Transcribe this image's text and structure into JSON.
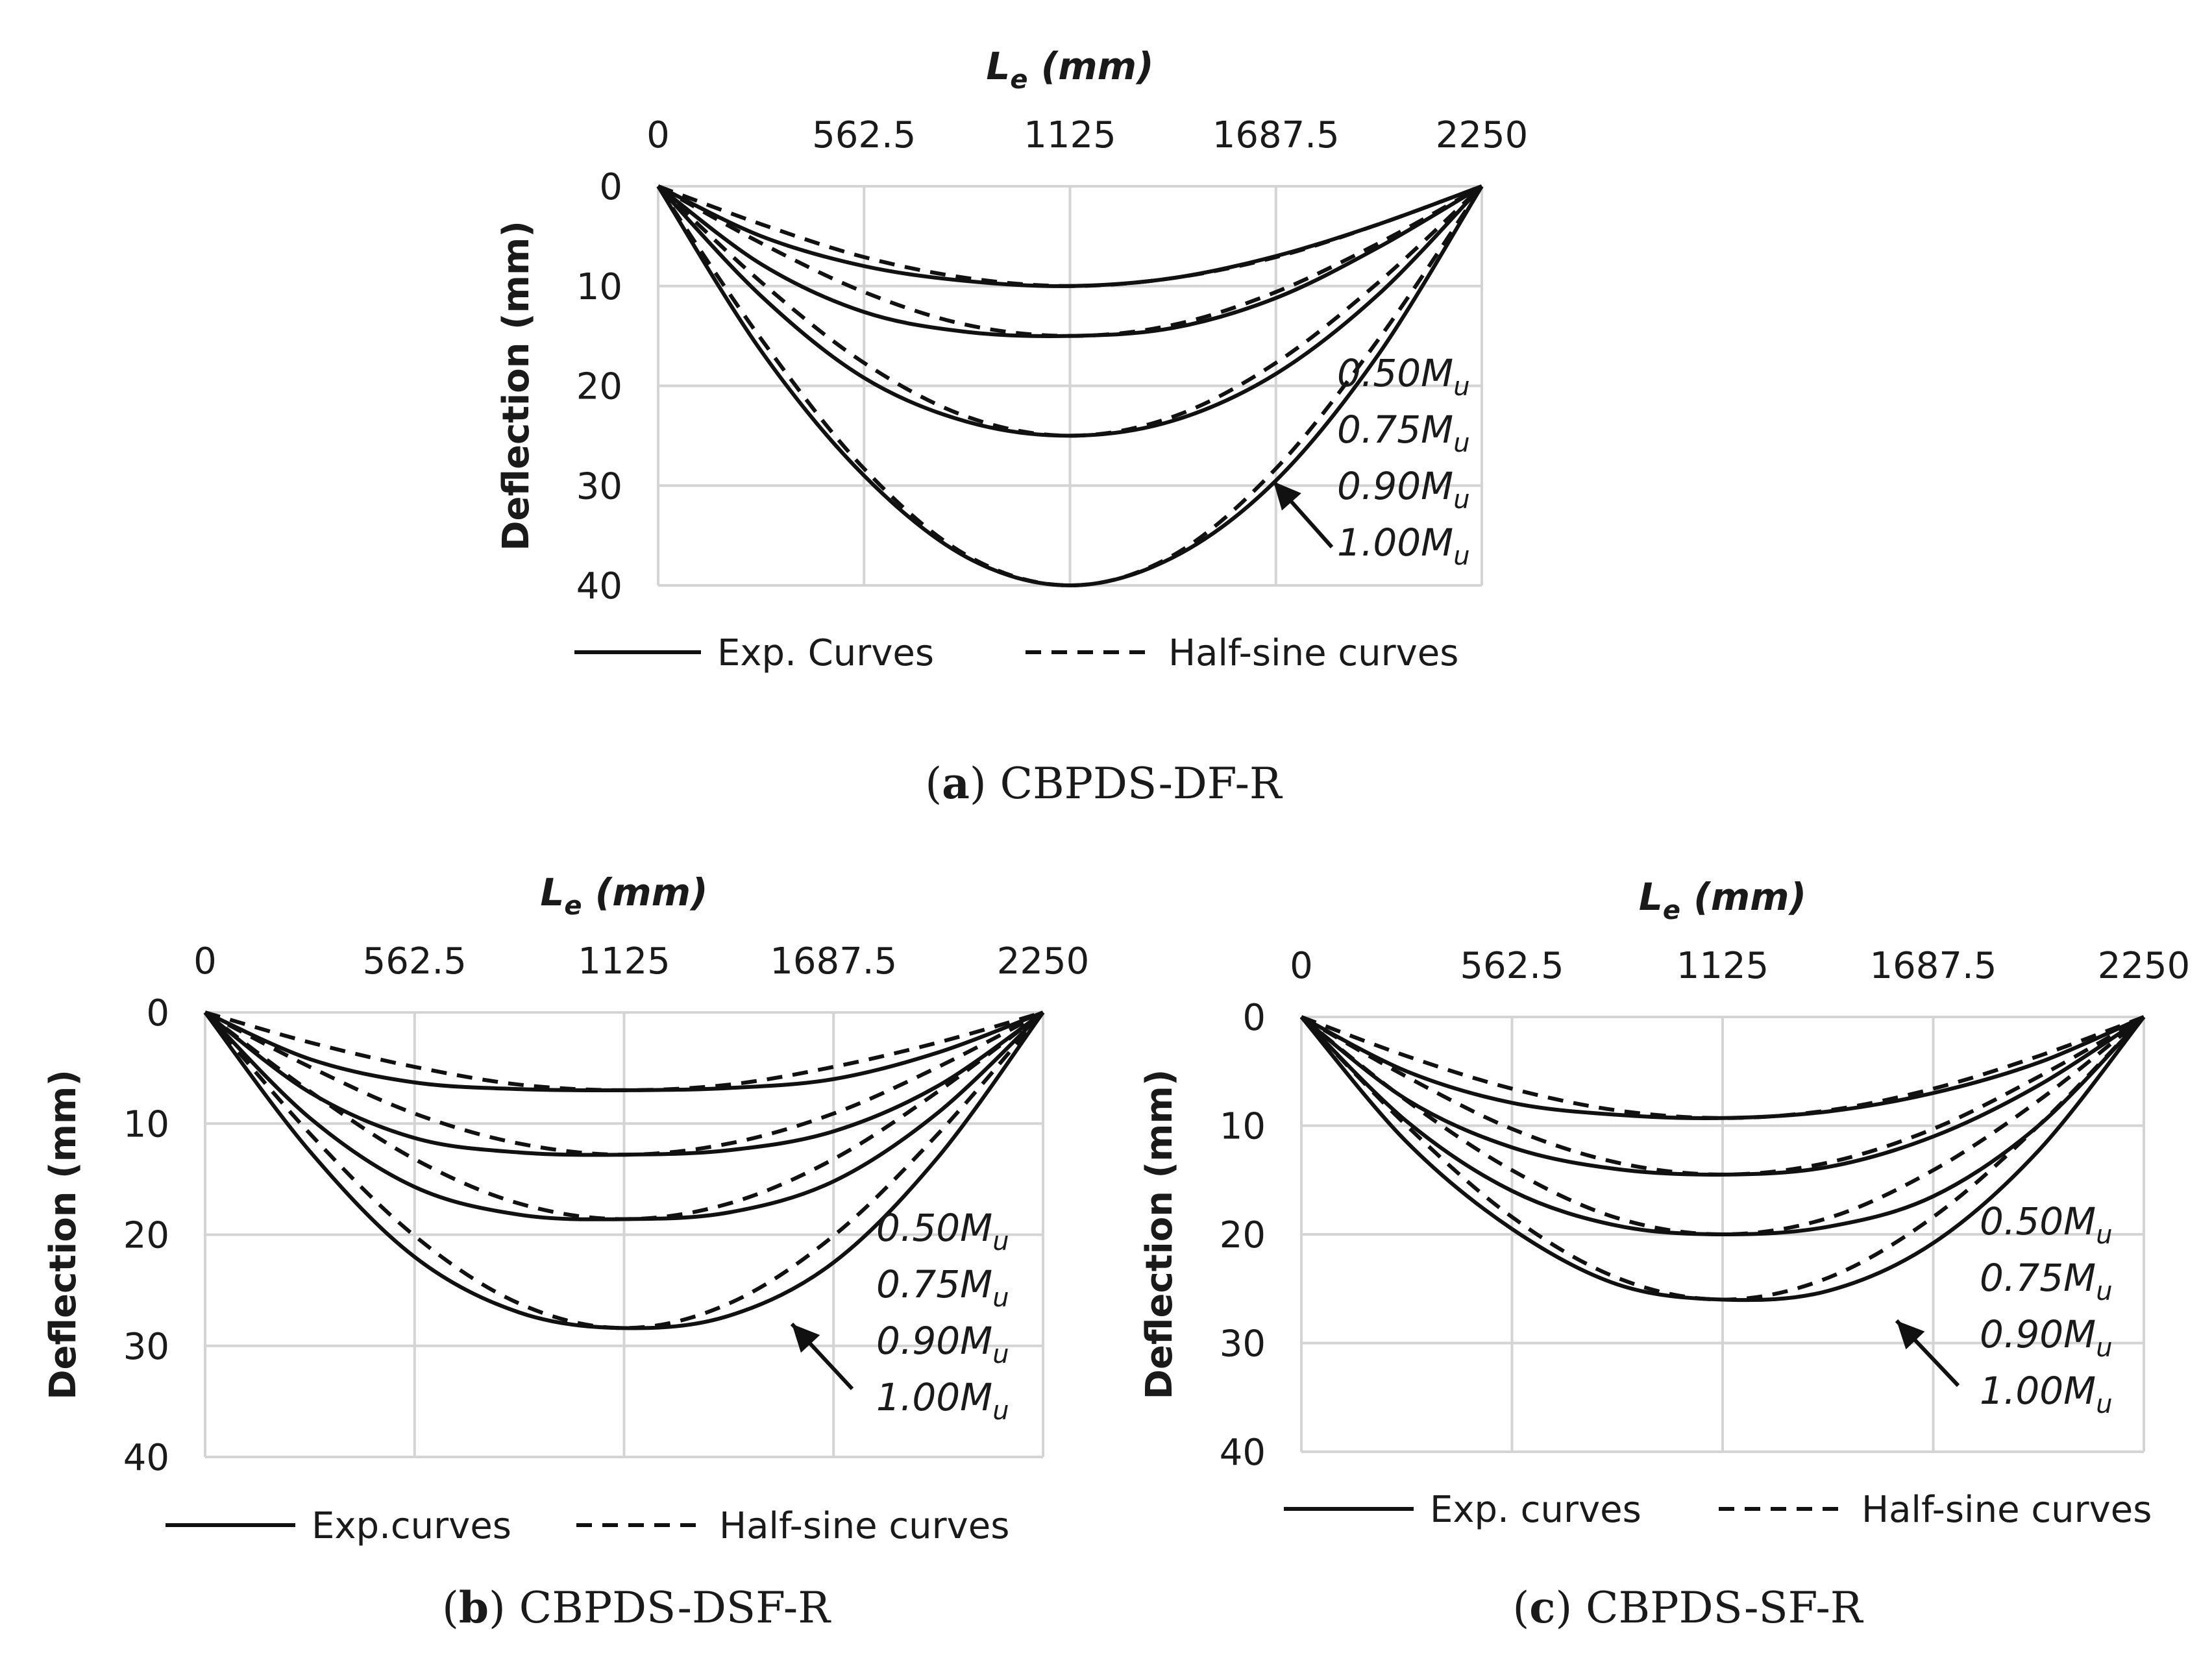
{
  "chart_data": [
    {
      "id": "a",
      "type": "line",
      "x_axis_title_main": "L",
      "x_axis_title_sub": "e",
      "x_axis_title_unit": " (mm)",
      "y_axis_title": "Deflection (mm)",
      "x_ticks": [
        "0",
        "562.5",
        "1125",
        "1687.5",
        "2250"
      ],
      "x_tick_values": [
        0,
        562.5,
        1125,
        1687.5,
        2250
      ],
      "y_ticks": [
        "0",
        "10",
        "20",
        "30",
        "40"
      ],
      "y_tick_values": [
        0,
        10,
        20,
        30,
        40
      ],
      "xlim": [
        0,
        2250
      ],
      "ylim": [
        0,
        40
      ],
      "y_inverted": true,
      "x_axis_position": "top",
      "grid": true,
      "load_levels": [
        "0.50M",
        "0.75M",
        "0.90M",
        "1.00M"
      ],
      "load_level_sub": "u",
      "legend": {
        "solid": "Exp. Curves",
        "dashed": "Half-sine curves",
        "position": "bottom"
      },
      "caption": {
        "label": "a",
        "name": "CBPDS-DF-R"
      },
      "series": [
        {
          "name": "0.50Mu Exp. Curves",
          "style": "solid",
          "x": [
            0,
            281.25,
            562.5,
            843.75,
            1125,
            1406.25,
            1687.5,
            1968.75,
            2250
          ],
          "y": [
            0,
            5.0,
            8.0,
            9.5,
            10.0,
            9.2,
            7.0,
            3.8,
            0
          ]
        },
        {
          "name": "0.50Mu Half-sine curves",
          "style": "dashed",
          "x": [
            0,
            281.25,
            562.5,
            843.75,
            1125,
            1406.25,
            1687.5,
            1968.75,
            2250
          ],
          "y": [
            0,
            3.8,
            7.1,
            9.2,
            10.0,
            9.2,
            7.1,
            3.8,
            0
          ]
        },
        {
          "name": "0.75Mu Exp. Curves",
          "style": "solid",
          "x": [
            0,
            281.25,
            562.5,
            843.75,
            1125,
            1406.25,
            1687.5,
            1968.75,
            2250
          ],
          "y": [
            0,
            7.8,
            12.6,
            14.6,
            15.0,
            14.2,
            11.2,
            6.1,
            0
          ]
        },
        {
          "name": "0.75Mu Half-sine curves",
          "style": "dashed",
          "x": [
            0,
            281.25,
            562.5,
            843.75,
            1125,
            1406.25,
            1687.5,
            1968.75,
            2250
          ],
          "y": [
            0,
            5.7,
            10.6,
            13.9,
            15.0,
            13.9,
            10.6,
            5.7,
            0
          ]
        },
        {
          "name": "0.90Mu Exp. Curves",
          "style": "solid",
          "x": [
            0,
            281.25,
            562.5,
            843.75,
            1125,
            1406.25,
            1687.5,
            1968.75,
            2250
          ],
          "y": [
            0,
            11.0,
            19.2,
            23.6,
            25.0,
            23.5,
            18.8,
            10.8,
            0
          ]
        },
        {
          "name": "0.90Mu Half-sine curves",
          "style": "dashed",
          "x": [
            0,
            281.25,
            562.5,
            843.75,
            1125,
            1406.25,
            1687.5,
            1968.75,
            2250
          ],
          "y": [
            0,
            9.6,
            17.7,
            23.1,
            25.0,
            23.1,
            17.7,
            9.6,
            0
          ]
        },
        {
          "name": "1.00Mu Exp. Curves",
          "style": "solid",
          "x": [
            0,
            281.25,
            562.5,
            843.75,
            1125,
            1406.25,
            1687.5,
            1968.75,
            2250
          ],
          "y": [
            0,
            16.5,
            29.0,
            37.2,
            40.0,
            37.2,
            29.5,
            16.8,
            0
          ]
        },
        {
          "name": "1.00Mu Half-sine curves",
          "style": "dashed",
          "x": [
            0,
            281.25,
            562.5,
            843.75,
            1125,
            1406.25,
            1687.5,
            1968.75,
            2250
          ],
          "y": [
            0,
            15.3,
            28.3,
            37.0,
            40.0,
            37.0,
            28.3,
            15.3,
            0
          ]
        }
      ]
    },
    {
      "id": "b",
      "type": "line",
      "x_axis_title_main": "L",
      "x_axis_title_sub": "e",
      "x_axis_title_unit": " (mm)",
      "y_axis_title": "Deflection (mm)",
      "x_ticks": [
        "0",
        "562.5",
        "1125",
        "1687.5",
        "2250"
      ],
      "x_tick_values": [
        0,
        562.5,
        1125,
        1687.5,
        2250
      ],
      "y_ticks": [
        "0",
        "10",
        "20",
        "30",
        "40"
      ],
      "y_tick_values": [
        0,
        10,
        20,
        30,
        40
      ],
      "xlim": [
        0,
        2250
      ],
      "ylim": [
        0,
        40
      ],
      "y_inverted": true,
      "x_axis_position": "top",
      "grid": true,
      "load_levels": [
        "0.50M",
        "0.75M",
        "0.90M",
        "1.00M"
      ],
      "load_level_sub": "u",
      "legend": {
        "solid": "Exp.curves",
        "dashed": "Half-sine curves",
        "position": "bottom"
      },
      "caption": {
        "label": "b",
        "name": "CBPDS-DSF-R"
      },
      "series": [
        {
          "name": "0.50Mu Exp.curves",
          "style": "solid",
          "x": [
            0,
            281.25,
            562.5,
            843.75,
            1125,
            1406.25,
            1687.5,
            1968.75,
            2250
          ],
          "y": [
            0,
            4.2,
            6.3,
            6.9,
            7.0,
            6.8,
            6.0,
            3.6,
            0
          ]
        },
        {
          "name": "0.50Mu Half-sine curves",
          "style": "dashed",
          "x": [
            0,
            281.25,
            562.5,
            843.75,
            1125,
            1406.25,
            1687.5,
            1968.75,
            2250
          ],
          "y": [
            0,
            2.7,
            4.9,
            6.5,
            7.0,
            6.5,
            4.9,
            2.7,
            0
          ]
        },
        {
          "name": "0.75Mu Exp.curves",
          "style": "solid",
          "x": [
            0,
            281.25,
            562.5,
            843.75,
            1125,
            1406.25,
            1687.5,
            1968.75,
            2250
          ],
          "y": [
            0,
            7.2,
            11.3,
            12.6,
            12.8,
            12.4,
            10.7,
            6.6,
            0
          ]
        },
        {
          "name": "0.75Mu Half-sine curves",
          "style": "dashed",
          "x": [
            0,
            281.25,
            562.5,
            843.75,
            1125,
            1406.25,
            1687.5,
            1968.75,
            2250
          ],
          "y": [
            0,
            4.9,
            9.1,
            11.8,
            12.8,
            11.8,
            9.1,
            4.9,
            0
          ]
        },
        {
          "name": "0.90Mu Exp.curves",
          "style": "solid",
          "x": [
            0,
            281.25,
            562.5,
            843.75,
            1125,
            1406.25,
            1687.5,
            1968.75,
            2250
          ],
          "y": [
            0,
            9.5,
            15.7,
            18.2,
            18.6,
            18.0,
            15.2,
            9.0,
            0
          ]
        },
        {
          "name": "0.90Mu Half-sine curves",
          "style": "dashed",
          "x": [
            0,
            281.25,
            562.5,
            843.75,
            1125,
            1406.25,
            1687.5,
            1968.75,
            2250
          ],
          "y": [
            0,
            7.1,
            13.2,
            17.2,
            18.6,
            17.2,
            13.2,
            7.1,
            0
          ]
        },
        {
          "name": "1.00Mu Exp.curves",
          "style": "solid",
          "x": [
            0,
            281.25,
            562.5,
            843.75,
            1125,
            1406.25,
            1687.5,
            1968.75,
            2250
          ],
          "y": [
            0,
            12.5,
            22.0,
            27.0,
            28.4,
            27.3,
            22.5,
            13.0,
            0
          ]
        },
        {
          "name": "1.00Mu Half-sine curves",
          "style": "dashed",
          "x": [
            0,
            281.25,
            562.5,
            843.75,
            1125,
            1406.25,
            1687.5,
            1968.75,
            2250
          ],
          "y": [
            0,
            10.9,
            20.1,
            26.2,
            28.4,
            26.2,
            20.1,
            10.9,
            0
          ]
        }
      ]
    },
    {
      "id": "c",
      "type": "line",
      "x_axis_title_main": "L",
      "x_axis_title_sub": "e",
      "x_axis_title_unit": " (mm)",
      "y_axis_title": "Deflection (mm)",
      "x_ticks": [
        "0",
        "562.5",
        "1125",
        "1687.5",
        "2250"
      ],
      "x_tick_values": [
        0,
        562.5,
        1125,
        1687.5,
        2250
      ],
      "y_ticks": [
        "0",
        "10",
        "20",
        "30",
        "40"
      ],
      "y_tick_values": [
        0,
        10,
        20,
        30,
        40
      ],
      "xlim": [
        0,
        2250
      ],
      "ylim": [
        0,
        40
      ],
      "y_inverted": true,
      "x_axis_position": "top",
      "grid": true,
      "load_levels": [
        "0.50M",
        "0.75M",
        "0.90M",
        "1.00M"
      ],
      "load_level_sub": "u",
      "legend": {
        "solid": "Exp. curves",
        "dashed": "Half-sine curves",
        "position": "bottom"
      },
      "caption": {
        "label": "c",
        "name": "CBPDS-SF-R"
      },
      "series": [
        {
          "name": "0.50Mu Exp. curves",
          "style": "solid",
          "x": [
            0,
            281.25,
            562.5,
            843.75,
            1125,
            1406.25,
            1687.5,
            1968.75,
            2250
          ],
          "y": [
            0,
            5.0,
            7.9,
            9.0,
            9.3,
            8.7,
            7.0,
            4.2,
            0
          ]
        },
        {
          "name": "0.50Mu Half-sine curves",
          "style": "dashed",
          "x": [
            0,
            281.25,
            562.5,
            843.75,
            1125,
            1406.25,
            1687.5,
            1968.75,
            2250
          ],
          "y": [
            0,
            3.6,
            6.6,
            8.6,
            9.3,
            8.6,
            6.6,
            3.6,
            0
          ]
        },
        {
          "name": "0.75Mu Exp. curves",
          "style": "solid",
          "x": [
            0,
            281.25,
            562.5,
            843.75,
            1125,
            1406.25,
            1687.5,
            1968.75,
            2250
          ],
          "y": [
            0,
            7.6,
            12.0,
            14.0,
            14.5,
            13.8,
            11.0,
            6.3,
            0
          ]
        },
        {
          "name": "0.75Mu Half-sine curves",
          "style": "dashed",
          "x": [
            0,
            281.25,
            562.5,
            843.75,
            1125,
            1406.25,
            1687.5,
            1968.75,
            2250
          ],
          "y": [
            0,
            5.5,
            10.3,
            13.4,
            14.5,
            13.4,
            10.3,
            5.5,
            0
          ]
        },
        {
          "name": "0.90Mu Exp. curves",
          "style": "solid",
          "x": [
            0,
            281.25,
            562.5,
            843.75,
            1125,
            1406.25,
            1687.5,
            1968.75,
            2250
          ],
          "y": [
            0,
            9.6,
            16.0,
            19.2,
            20.0,
            19.3,
            16.5,
            10.0,
            0
          ]
        },
        {
          "name": "0.90Mu Half-sine curves",
          "style": "dashed",
          "x": [
            0,
            281.25,
            562.5,
            843.75,
            1125,
            1406.25,
            1687.5,
            1968.75,
            2250
          ],
          "y": [
            0,
            7.7,
            14.1,
            18.5,
            20.0,
            18.5,
            14.1,
            7.7,
            0
          ]
        },
        {
          "name": "1.00Mu Exp. curves",
          "style": "solid",
          "x": [
            0,
            281.25,
            562.5,
            843.75,
            1125,
            1406.25,
            1687.5,
            1968.75,
            2250
          ],
          "y": [
            0,
            11.5,
            19.5,
            24.6,
            26.0,
            25.2,
            20.8,
            12.3,
            0
          ]
        },
        {
          "name": "1.00Mu Half-sine curves",
          "style": "dashed",
          "x": [
            0,
            281.25,
            562.5,
            843.75,
            1125,
            1406.25,
            1687.5,
            1968.75,
            2250
          ],
          "y": [
            0,
            10.0,
            18.4,
            24.0,
            26.0,
            24.0,
            18.4,
            10.0,
            0
          ]
        }
      ]
    }
  ]
}
